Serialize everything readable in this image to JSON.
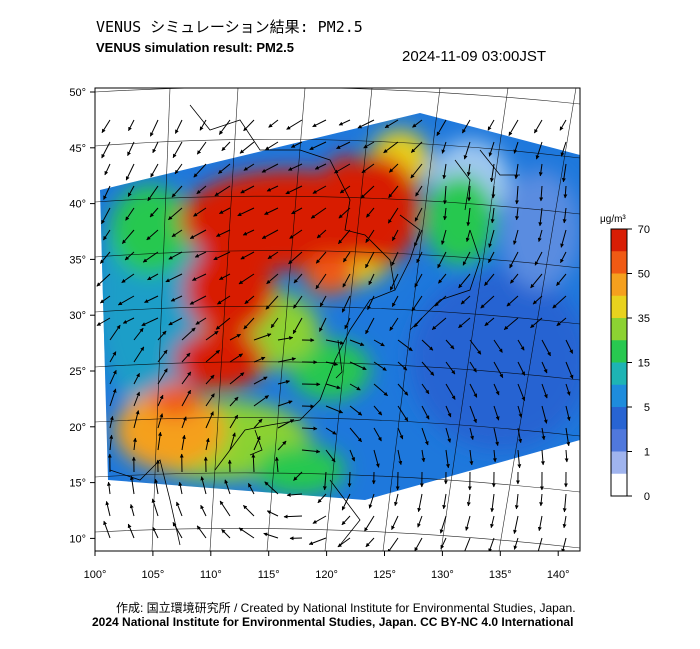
{
  "header": {
    "title_jp": "VENUS シミュレーション結果: PM2.5",
    "title_en": "VENUS simulation result: PM2.5",
    "timestamp": "2024-11-09 03:00JST"
  },
  "map": {
    "lon_ticks": [
      "100°",
      "105°",
      "110°",
      "115°",
      "120°",
      "125°",
      "130°",
      "135°",
      "140°"
    ],
    "lat_ticks": [
      "50°",
      "45°",
      "40°",
      "35°",
      "30°",
      "25°",
      "20°",
      "15°",
      "10°"
    ],
    "lon_range": [
      100,
      142
    ],
    "lat_range": [
      9,
      51
    ]
  },
  "colorbar": {
    "unit": "μg/m³",
    "labels": [
      "70",
      "50",
      "35",
      "15",
      "5",
      "1",
      "0"
    ],
    "colors": [
      "#d81e05",
      "#f05a14",
      "#f5a01e",
      "#e8d21e",
      "#8cd232",
      "#28c850",
      "#1eb4b4",
      "#1e8cdc",
      "#2864d2",
      "#5078dc",
      "#a0b4ee",
      "#ffffff"
    ]
  },
  "footer": {
    "credit": "作成: 国立環境研究所 / Created by National Institute for Environmental Studies, Japan.",
    "copyright": "2024 National Institute for Environmental Studies, Japan. CC BY-NC 4.0 International"
  }
}
